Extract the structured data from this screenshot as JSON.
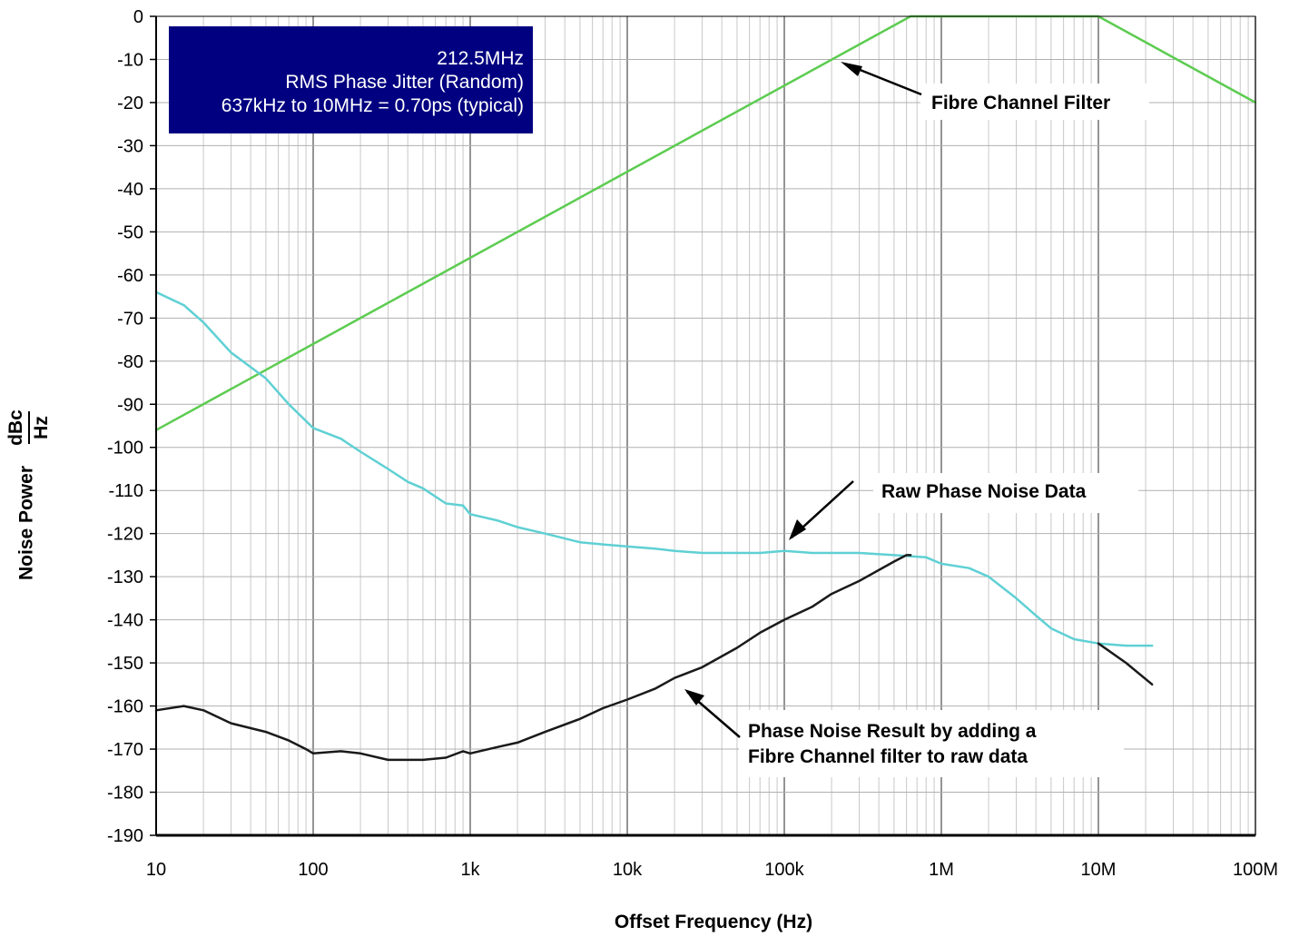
{
  "chart_data": {
    "type": "line",
    "xscale": "log",
    "xlim": [
      10,
      100000000
    ],
    "ylim": [
      -190,
      0
    ],
    "grid": true,
    "xlabel": "Offset Frequency (Hz)",
    "ylabel_prefix": "Noise Power",
    "ylabel_unit_numerator": "dBc",
    "ylabel_unit_denominator": "Hz",
    "x_ticks": [
      {
        "value": 10,
        "label": "10"
      },
      {
        "value": 100,
        "label": "100"
      },
      {
        "value": 1000,
        "label": "1k"
      },
      {
        "value": 10000,
        "label": "10k"
      },
      {
        "value": 100000,
        "label": "100k"
      },
      {
        "value": 1000000,
        "label": "1M"
      },
      {
        "value": 10000000,
        "label": "10M"
      },
      {
        "value": 100000000,
        "label": "100M"
      }
    ],
    "y_ticks": [
      0,
      -10,
      -20,
      -30,
      -40,
      -50,
      -60,
      -70,
      -80,
      -90,
      -100,
      -110,
      -120,
      -130,
      -140,
      -150,
      -160,
      -170,
      -180,
      -190
    ],
    "info_box": {
      "lines": [
        "212.5MHz",
        "RMS Phase Jitter (Random)",
        "637kHz to 10MHz = 0.70ps (typical)"
      ],
      "background": "#000080"
    },
    "annotations": [
      {
        "lines": [
          "Fibre Channel Filter"
        ],
        "target": [
          230000,
          -11
        ]
      },
      {
        "lines": [
          "Raw Phase Noise Data"
        ],
        "target": [
          90000,
          -122
        ]
      },
      {
        "lines": [
          "Phase Noise Result by adding a",
          "Fibre Channel filter to raw data"
        ],
        "target": [
          21000,
          -156
        ]
      }
    ],
    "series": [
      {
        "key": "filter",
        "color": "#5ccc50",
        "points": [
          [
            10,
            -96
          ],
          [
            637000,
            0
          ],
          [
            10000000,
            0
          ],
          [
            100000000,
            -20
          ]
        ]
      },
      {
        "key": "raw",
        "color": "#5fd0d4",
        "points": [
          [
            10,
            -64
          ],
          [
            15,
            -67
          ],
          [
            20,
            -71
          ],
          [
            30,
            -78
          ],
          [
            50,
            -84
          ],
          [
            70,
            -90
          ],
          [
            100,
            -95.5
          ],
          [
            150,
            -98
          ],
          [
            200,
            -101
          ],
          [
            300,
            -105
          ],
          [
            400,
            -108
          ],
          [
            500,
            -109.5
          ],
          [
            700,
            -113
          ],
          [
            900,
            -113.5
          ],
          [
            1000,
            -115.5
          ],
          [
            1500,
            -117
          ],
          [
            2000,
            -118.5
          ],
          [
            3000,
            -120
          ],
          [
            5000,
            -122
          ],
          [
            7000,
            -122.5
          ],
          [
            10000,
            -123
          ],
          [
            15000,
            -123.5
          ],
          [
            20000,
            -124
          ],
          [
            30000,
            -124.5
          ],
          [
            50000,
            -124.5
          ],
          [
            70000,
            -124.5
          ],
          [
            100000,
            -124
          ],
          [
            150000,
            -124.5
          ],
          [
            200000,
            -124.5
          ],
          [
            300000,
            -124.5
          ],
          [
            500000,
            -125
          ],
          [
            800000,
            -125.5
          ],
          [
            1000000,
            -127
          ],
          [
            1500000,
            -128
          ],
          [
            2000000,
            -130
          ],
          [
            3000000,
            -135
          ],
          [
            4000000,
            -139
          ],
          [
            5000000,
            -142
          ],
          [
            7000000,
            -144.5
          ],
          [
            10000000,
            -145.5
          ],
          [
            15000000,
            -146
          ],
          [
            22000000,
            -146
          ]
        ]
      },
      {
        "key": "result",
        "color": "#1a1a1a",
        "points": [
          [
            10,
            -161
          ],
          [
            15,
            -160
          ],
          [
            20,
            -161
          ],
          [
            30,
            -164
          ],
          [
            50,
            -166
          ],
          [
            70,
            -168
          ],
          [
            90,
            -170
          ],
          [
            100,
            -171
          ],
          [
            150,
            -170.5
          ],
          [
            200,
            -171
          ],
          [
            300,
            -172.5
          ],
          [
            400,
            -172.5
          ],
          [
            500,
            -172.5
          ],
          [
            700,
            -172
          ],
          [
            900,
            -170.5
          ],
          [
            1000,
            -171
          ],
          [
            1500,
            -169.5
          ],
          [
            2000,
            -168.5
          ],
          [
            3000,
            -166
          ],
          [
            5000,
            -163
          ],
          [
            7000,
            -160.5
          ],
          [
            10000,
            -158.5
          ],
          [
            15000,
            -156
          ],
          [
            20000,
            -153.5
          ],
          [
            30000,
            -151
          ],
          [
            50000,
            -146.5
          ],
          [
            70000,
            -143
          ],
          [
            100000,
            -140
          ],
          [
            150000,
            -137
          ],
          [
            200000,
            -134
          ],
          [
            300000,
            -131
          ],
          [
            500000,
            -126.5
          ],
          [
            600000,
            -125
          ],
          [
            637000,
            -125
          ]
        ]
      },
      {
        "key": "result_tail",
        "color": "#1a1a1a",
        "points": [
          [
            10000000,
            -145.5
          ],
          [
            15000000,
            -150
          ],
          [
            22000000,
            -155
          ]
        ]
      }
    ]
  }
}
